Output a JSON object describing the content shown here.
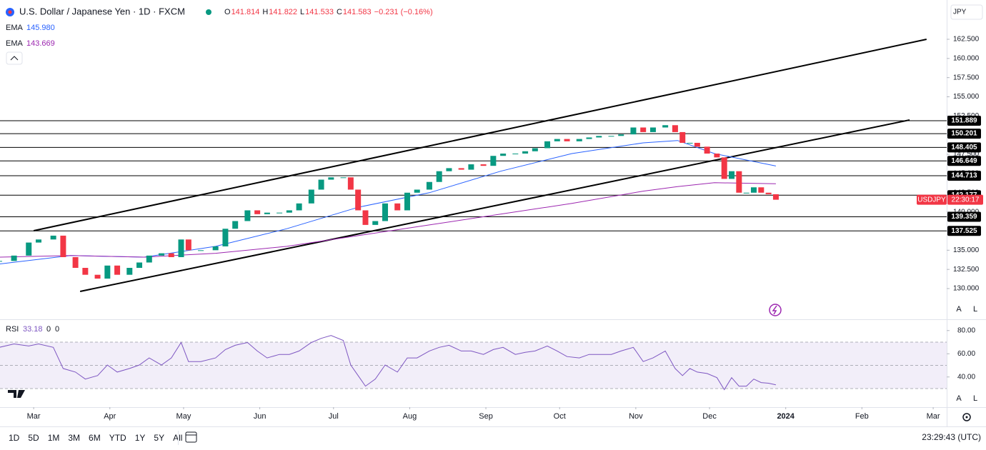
{
  "chart_data": [
    {
      "type": "candlestick",
      "title": "U.S. Dollar / Japanese Yen · 1D · FXCM",
      "ohlc": [
        {
          "label": "O",
          "value": "141.814"
        },
        {
          "label": "H",
          "value": "141.822"
        },
        {
          "label": "L",
          "value": "141.533"
        },
        {
          "label": "C",
          "value": "141.583"
        }
      ],
      "change_label": "−0.231 (−0.16%)",
      "up_color": "#089981",
      "down_color": "#f23645",
      "x": [
        45,
        51,
        57,
        61,
        67,
        71,
        76,
        80,
        85,
        89,
        93,
        98,
        102,
        106,
        111,
        115,
        119,
        122,
        127,
        133,
        137,
        141,
        146,
        150,
        154,
        159,
        163,
        167,
        172,
        176,
        180,
        185,
        188,
        191,
        194,
        198,
        202,
        207,
        211,
        215,
        220,
        224,
        228,
        233,
        237,
        242,
        246,
        250,
        255,
        259,
        263,
        268,
        272,
        276,
        281,
        285,
        289,
        294,
        298,
        303,
        307,
        311,
        316,
        320,
        323,
        326,
        329,
        333,
        337,
        340,
        343,
        346,
        349,
        352,
        355,
        358,
        361
      ],
      "close": [
        133.6,
        134.3,
        136,
        136.4,
        136.9,
        134.1,
        132.7,
        131.8,
        131.3,
        133,
        131.8,
        132.7,
        133.4,
        134.3,
        134.6,
        134.1,
        136.4,
        135,
        135,
        135.5,
        137.8,
        138.8,
        140.2,
        139.7,
        139.9,
        139.9,
        140.2,
        141.1,
        142.9,
        144.2,
        144.5,
        144.5,
        142.9,
        140.2,
        138.3,
        138.8,
        141.1,
        140.2,
        142.5,
        142.9,
        143.9,
        145.3,
        145.7,
        145.5,
        146.2,
        146,
        147.3,
        147.6,
        147.6,
        147.9,
        148.3,
        149.2,
        149.5,
        149.2,
        149.5,
        149.7,
        149.9,
        149.9,
        150.1,
        151,
        150.4,
        151,
        151.3,
        150.4,
        149,
        149,
        148.5,
        147.6,
        147.1,
        144.3,
        145.3,
        142.5,
        142.5,
        143.2,
        142.5,
        142.3,
        141.583
      ],
      "xlim": [
        45.3,
        430.5
      ],
      "xticks": [
        {
          "value": 59,
          "label": "Mar"
        },
        {
          "value": 90,
          "label": "Apr"
        },
        {
          "value": 120,
          "label": "May"
        },
        {
          "value": 151,
          "label": "Jun"
        },
        {
          "value": 181,
          "label": "Jul"
        },
        {
          "value": 212,
          "label": "Aug"
        },
        {
          "value": 243,
          "label": "Sep"
        },
        {
          "value": 273,
          "label": "Oct"
        },
        {
          "value": 304,
          "label": "Nov"
        },
        {
          "value": 334,
          "label": "Dec"
        },
        {
          "value": 365,
          "label": "2024"
        },
        {
          "value": 396,
          "label": "Feb"
        },
        {
          "value": 425,
          "label": "Mar"
        }
      ],
      "ylim": [
        126.09,
        167.62
      ],
      "yticks": [
        {
          "value": 130,
          "label": "130.000"
        },
        {
          "value": 132.5,
          "label": "132.500"
        },
        {
          "value": 135,
          "label": "135.000"
        },
        {
          "value": 137.5,
          "label": "137.500"
        },
        {
          "value": 140,
          "label": "140.000"
        },
        {
          "value": 142.5,
          "label": "142.500"
        },
        {
          "value": 145,
          "label": "145.000"
        },
        {
          "value": 147.5,
          "label": "147.500"
        },
        {
          "value": 150,
          "label": "150.000"
        },
        {
          "value": 152.5,
          "label": "152.500"
        },
        {
          "value": 155,
          "label": "155.000"
        },
        {
          "value": 157.5,
          "label": "157.500"
        },
        {
          "value": 160,
          "label": "160.000"
        },
        {
          "value": 162.5,
          "label": "162.500"
        }
      ],
      "ema": [
        {
          "name": "EMA",
          "value_label": "145.980",
          "color": "#2962ff",
          "x": [
            45,
            74,
            104,
            133,
            162,
            191,
            220,
            249,
            278,
            307,
            321,
            336,
            361
          ],
          "values": [
            133.2,
            134.3,
            134.1,
            135.5,
            137.8,
            140.6,
            142.5,
            145.3,
            147.6,
            149,
            149.3,
            147.6,
            145.98
          ]
        },
        {
          "name": "EMA",
          "value_label": "143.669",
          "color": "#9c27b0",
          "x": [
            45,
            74,
            104,
            133,
            162,
            191,
            220,
            249,
            278,
            307,
            321,
            336,
            361
          ],
          "values": [
            134.1,
            134.3,
            134.1,
            134.6,
            135.5,
            136.9,
            138.3,
            139.7,
            141.1,
            142.7,
            143.3,
            143.8,
            143.669
          ]
        }
      ],
      "levels": [
        {
          "value": 151.889,
          "label": "151.889"
        },
        {
          "value": 150.201,
          "label": "150.201"
        },
        {
          "value": 148.405,
          "label": "148.405"
        },
        {
          "value": 146.649,
          "label": "146.649"
        },
        {
          "value": 144.713,
          "label": "144.713"
        },
        {
          "value": 142.177,
          "label": "142.177"
        },
        {
          "value": 139.359,
          "label": "139.359"
        },
        {
          "value": 137.525,
          "label": "137.525"
        }
      ],
      "trendlines": [
        {
          "x": [
            59,
            422.3
          ],
          "y": [
            137.54,
            162.5
          ]
        },
        {
          "x": [
            77.9,
            415.4
          ],
          "y": [
            129.63,
            151.98
          ]
        }
      ],
      "last_tag": {
        "symbol": "USDJPY",
        "countdown": "22:30:17",
        "color": "#f23645"
      }
    },
    {
      "type": "line",
      "name": "RSI",
      "value_label": "33.18",
      "params": [
        "0",
        "0"
      ],
      "color": "#7e57c2",
      "x": [
        45,
        51,
        57,
        61,
        67,
        71,
        76,
        80,
        85,
        89,
        93,
        98,
        102,
        106,
        111,
        115,
        119,
        122,
        127,
        133,
        137,
        141,
        146,
        150,
        154,
        159,
        163,
        167,
        172,
        176,
        180,
        185,
        188,
        191,
        194,
        198,
        202,
        207,
        211,
        215,
        220,
        224,
        228,
        233,
        237,
        242,
        246,
        250,
        255,
        259,
        263,
        268,
        272,
        276,
        281,
        285,
        289,
        294,
        298,
        303,
        307,
        311,
        316,
        320,
        323,
        326,
        329,
        333,
        337,
        340,
        343,
        346,
        349,
        352,
        355,
        358,
        361
      ],
      "values": [
        65.5,
        68.5,
        66.7,
        68.5,
        65.5,
        47.3,
        44.2,
        38.2,
        41.2,
        50.3,
        44.2,
        47.3,
        50.3,
        56.4,
        50.3,
        56.4,
        69.7,
        53.3,
        53.3,
        56.4,
        63.6,
        67.3,
        69.7,
        62.4,
        56.4,
        59.4,
        59.4,
        62.4,
        69.7,
        73.3,
        75.8,
        71.5,
        50.3,
        41.2,
        32.1,
        38.2,
        50.3,
        44.2,
        56.4,
        56.4,
        62.4,
        65.5,
        67.3,
        62.4,
        62.4,
        59.4,
        63.6,
        65.5,
        59.4,
        61.2,
        62.4,
        66.7,
        62.4,
        57.6,
        56.4,
        59.4,
        59.4,
        59.4,
        62.4,
        65.5,
        53.3,
        56.4,
        62.4,
        47.3,
        41.2,
        47.3,
        44.2,
        43,
        39.4,
        29.1,
        39.4,
        32.1,
        32.1,
        38.2,
        35.2,
        34.6,
        33.18
      ],
      "xlim": [
        45.3,
        430.5
      ],
      "ylim": [
        14,
        89.1
      ],
      "yticks": [
        {
          "value": 80,
          "label": "80.00"
        },
        {
          "value": 60,
          "label": "60.00"
        },
        {
          "value": 40,
          "label": "40.00"
        }
      ],
      "band": [
        30,
        70
      ],
      "midline": 50
    }
  ],
  "toolbar": {
    "intervals": [
      "1D",
      "5D",
      "1M",
      "3M",
      "6M",
      "YTD",
      "1Y",
      "5Y",
      "All"
    ],
    "clock": "23:29:43 (UTC)",
    "currency": "JPY",
    "scale_buttons": [
      "A",
      "L"
    ]
  }
}
